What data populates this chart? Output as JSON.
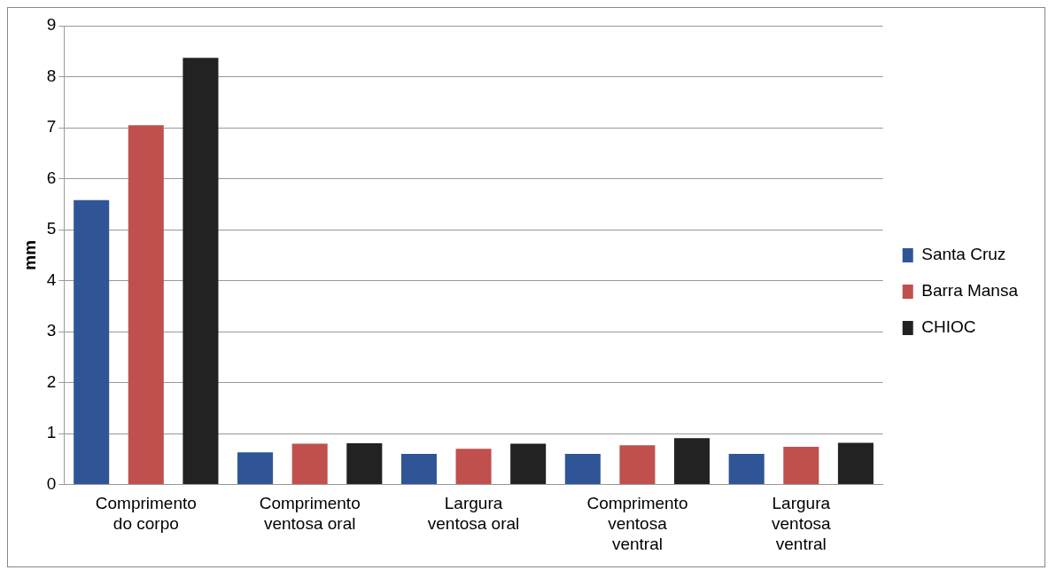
{
  "chart_data": {
    "type": "bar",
    "ylabel": "mm",
    "categories": [
      "Comprimento do corpo",
      "Comprimento ventosa oral",
      "Largura ventosa oral",
      "Comprimento ventosa ventral",
      "Largura ventosa ventral"
    ],
    "series": [
      {
        "name": "Santa Cruz",
        "color": "#2f5597",
        "values": [
          5.58,
          0.63,
          0.6,
          0.6,
          0.6
        ]
      },
      {
        "name": "Barra Mansa",
        "color": "#c0504d",
        "values": [
          7.05,
          0.8,
          0.7,
          0.77,
          0.74
        ]
      },
      {
        "name": "CHIOC",
        "color": "#222222",
        "values": [
          8.37,
          0.81,
          0.8,
          0.91,
          0.82
        ]
      }
    ],
    "ylim": [
      0,
      9
    ],
    "yticks": [
      0,
      1,
      2,
      3,
      4,
      5,
      6,
      7,
      8,
      9
    ],
    "grid": "y",
    "legend": "right"
  }
}
